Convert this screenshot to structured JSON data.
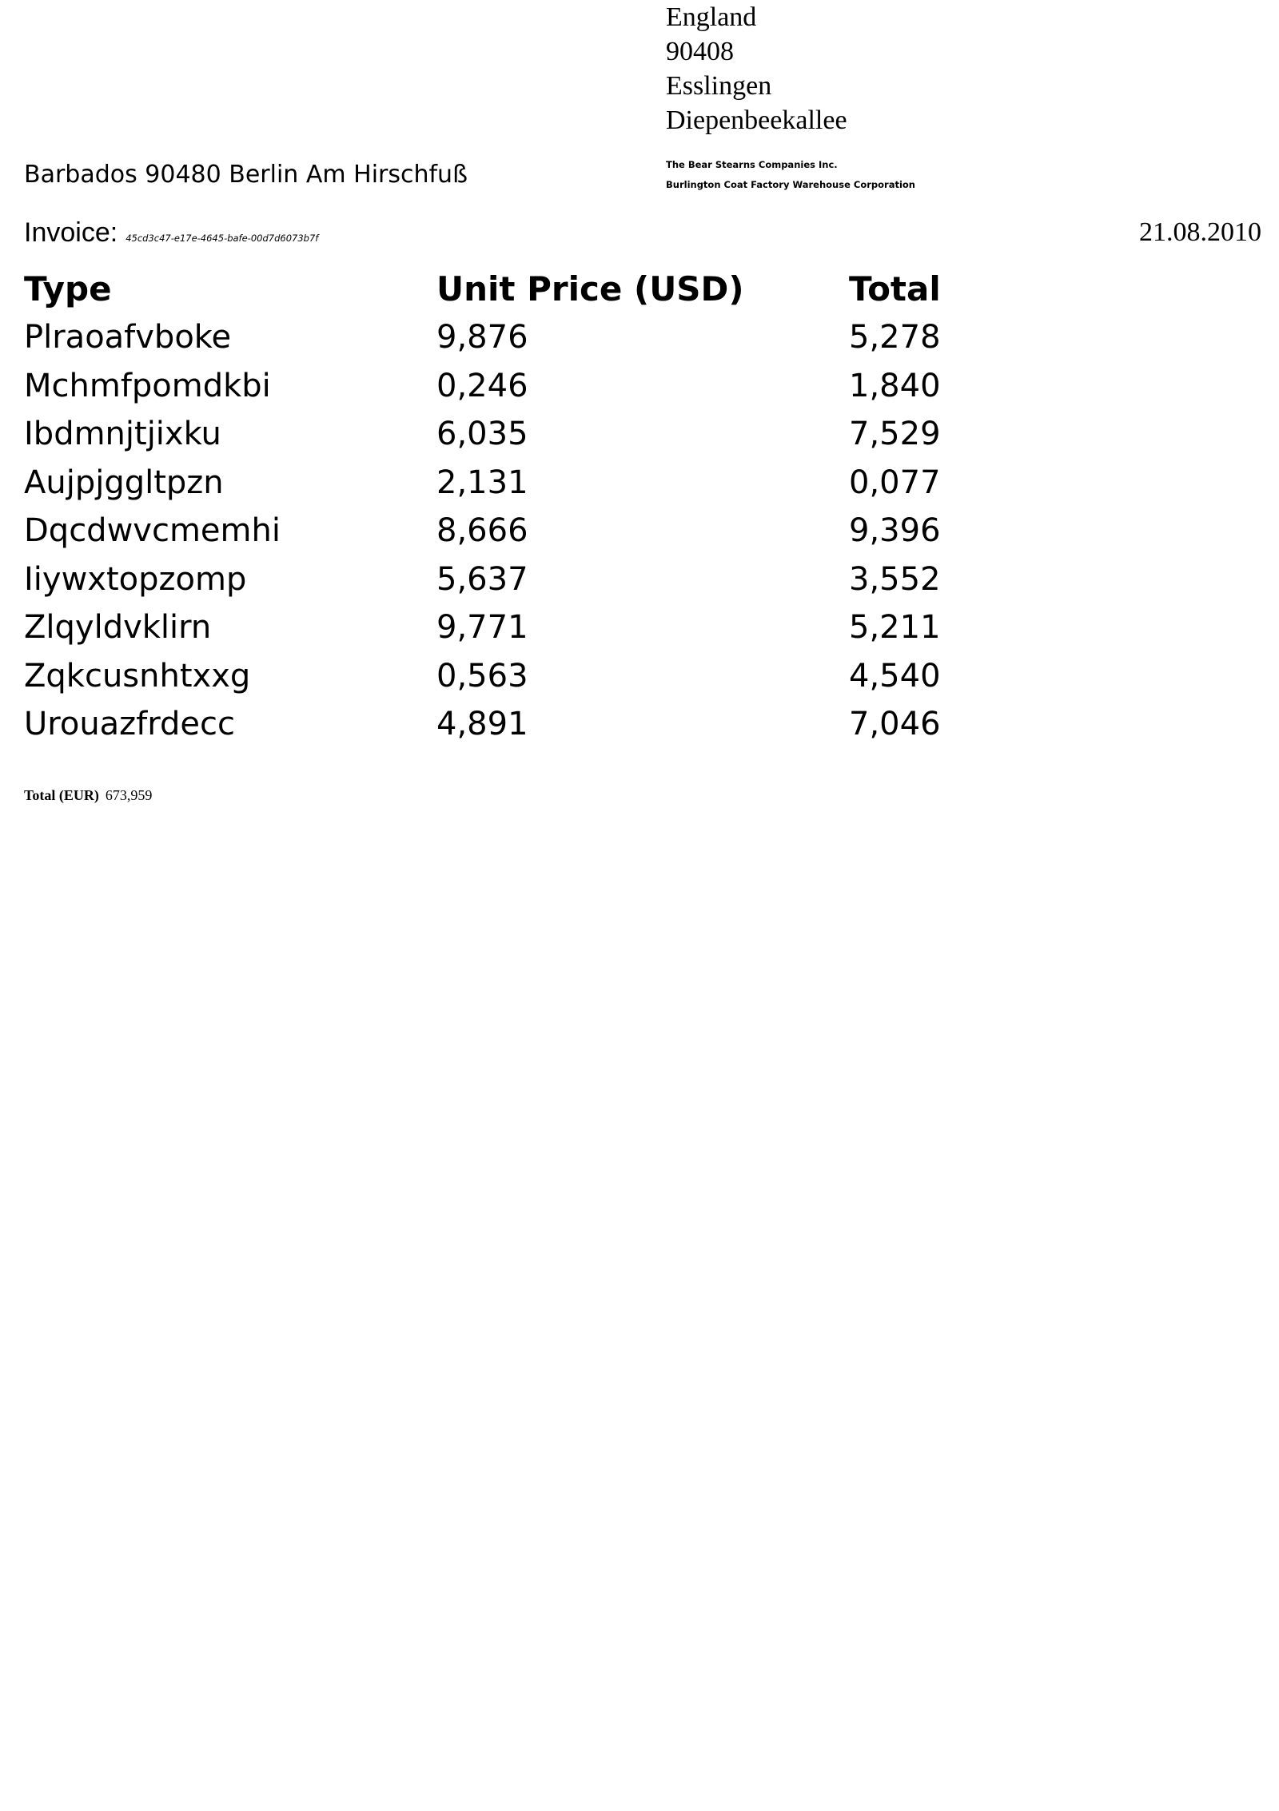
{
  "recipient": {
    "country": "England",
    "postal_code": "90408",
    "city": "Esslingen",
    "street": "Diepenbeekallee"
  },
  "sender": {
    "address_line": "Barbados 90480 Berlin Am Hirschfuß"
  },
  "companies": [
    "The Bear Stearns Companies Inc.",
    "Burlington Coat Factory Warehouse Corporation"
  ],
  "invoice": {
    "label": "Invoice:",
    "id": "45cd3c47-e17e-4645-bafe-00d7d6073b7f",
    "date": "21.08.2010"
  },
  "table": {
    "headers": [
      "Type",
      "Unit Price (USD)",
      "Total"
    ],
    "rows": [
      [
        "Plraoafvboke",
        "9,876",
        "5,278"
      ],
      [
        "Mchmfpomdkbi",
        "0,246",
        "1,840"
      ],
      [
        "Ibdmnjtjixku",
        "6,035",
        "7,529"
      ],
      [
        "Aujpjggltpzn",
        "2,131",
        "0,077"
      ],
      [
        "Dqcdwvcmemhi",
        "8,666",
        "9,396"
      ],
      [
        "Iiywxtopzomp",
        "5,637",
        "3,552"
      ],
      [
        "Zlqyldvklirn",
        "9,771",
        "5,211"
      ],
      [
        "Zqkcusnhtxxg",
        "0,563",
        "4,540"
      ],
      [
        "Urouazfrdecc",
        "4,891",
        "7,046"
      ]
    ]
  },
  "total": {
    "label": "Total (EUR)",
    "value": "673,959"
  }
}
